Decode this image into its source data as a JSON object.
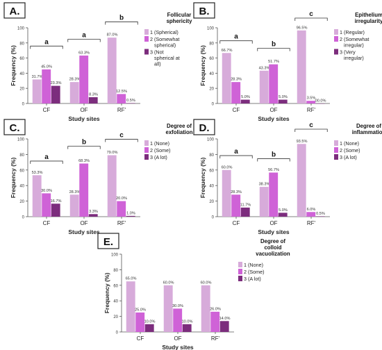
{
  "chart_data": [
    {
      "type": "bar",
      "panel_label": "A.",
      "legend_title": "Follicular sphericity",
      "ylabel": "Frequency (%)",
      "xlabel": "Study sites",
      "ylim": [
        0,
        100
      ],
      "yticks": [
        0,
        20,
        40,
        60,
        80,
        100
      ],
      "categories": [
        "CF",
        "OF",
        "RF'"
      ],
      "series": [
        {
          "name": "1 (Spherical)",
          "values": [
            31.7,
            28.3,
            87.0
          ],
          "labels": [
            "31.7%",
            "28.3%",
            "87.0%"
          ]
        },
        {
          "name": "2 (Somewhat spherical)",
          "values": [
            45.0,
            63.3,
            12.5
          ],
          "labels": [
            "45.0%",
            "63.3%",
            "12.5%"
          ]
        },
        {
          "name": "3 (Not spherical at all)",
          "values": [
            23.3,
            8.3,
            0.5
          ],
          "labels": [
            "23.3%",
            "8.3%",
            "0.5%"
          ]
        }
      ],
      "significance_letters": [
        "a",
        "a",
        "b"
      ]
    },
    {
      "type": "bar",
      "panel_label": "B.",
      "legend_title": "Epithelium irregularity",
      "ylabel": "Frequency (%)",
      "xlabel": "Study sites",
      "ylim": [
        0,
        100
      ],
      "yticks": [
        0,
        20,
        40,
        60,
        80,
        100
      ],
      "categories": [
        "CF",
        "OF",
        "RF'"
      ],
      "series": [
        {
          "name": "1 (Regular)",
          "values": [
            66.7,
            43.3,
            96.5
          ],
          "labels": [
            "66.7%",
            "43.3%",
            "96.5%"
          ]
        },
        {
          "name": "2 (Somewhat irregular)",
          "values": [
            28.3,
            51.7,
            3.5
          ],
          "labels": [
            "28.3%",
            "51.7%",
            "3.5%"
          ]
        },
        {
          "name": "3 (Very irregular)",
          "values": [
            5.0,
            5.0,
            0.0
          ],
          "labels": [
            "5.0%",
            "5.0%",
            "00.0%"
          ]
        }
      ],
      "significance_letters": [
        "a",
        "b",
        "c"
      ]
    },
    {
      "type": "bar",
      "panel_label": "C.",
      "legend_title": "Degree of exfoliation",
      "ylabel": "Frequency (%)",
      "xlabel": "Study sites",
      "ylim": [
        0,
        100
      ],
      "yticks": [
        0,
        20,
        40,
        60,
        80,
        100
      ],
      "categories": [
        "CF",
        "OF",
        "RF'"
      ],
      "series": [
        {
          "name": "1 (None)",
          "values": [
            53.3,
            28.3,
            79.0
          ],
          "labels": [
            "53.3%",
            "28.3%",
            "79.0%"
          ]
        },
        {
          "name": "2 (Some)",
          "values": [
            30.0,
            68.3,
            20.0
          ],
          "labels": [
            "30.0%",
            "68.3%",
            "20.0%"
          ]
        },
        {
          "name": "3 (A lot)",
          "values": [
            16.7,
            3.3,
            1.0
          ],
          "labels": [
            "16.7%",
            "3.3%",
            "1.0%"
          ]
        }
      ],
      "significance_letters": [
        "a",
        "b",
        "c"
      ]
    },
    {
      "type": "bar",
      "panel_label": "D.",
      "legend_title": "Degree of inflammation",
      "ylabel": "Frequency (%)",
      "xlabel": "Study sites",
      "ylim": [
        0,
        100
      ],
      "yticks": [
        0,
        20,
        40,
        60,
        80,
        100
      ],
      "categories": [
        "CF",
        "OF",
        "RF'"
      ],
      "series": [
        {
          "name": "1 (None)",
          "values": [
            60.0,
            38.3,
            93.5
          ],
          "labels": [
            "60.0%",
            "38.3%",
            "93.5%"
          ]
        },
        {
          "name": "2 (Some)",
          "values": [
            28.3,
            56.7,
            6.0
          ],
          "labels": [
            "28.3%",
            "56.7%",
            "6.0%"
          ]
        },
        {
          "name": "3 (A lot)",
          "values": [
            11.7,
            5.0,
            0.5
          ],
          "labels": [
            "11.7%",
            "5.0%",
            "0.5%"
          ]
        }
      ],
      "significance_letters": [
        "a",
        "b",
        "c"
      ]
    },
    {
      "type": "bar",
      "panel_label": "E.",
      "legend_title": "Degree of colloid vacuolization",
      "ylabel": "Frequency (%)",
      "xlabel": "Study sites",
      "ylim": [
        0,
        100
      ],
      "yticks": [
        0,
        20,
        40,
        60,
        80,
        100
      ],
      "categories": [
        "CF",
        "OF",
        "RF'"
      ],
      "series": [
        {
          "name": "1 (None)",
          "values": [
            65.0,
            60.0,
            60.0
          ],
          "labels": [
            "65.0%",
            "60.0%",
            "60.0%"
          ]
        },
        {
          "name": "2 (Some)",
          "values": [
            25.0,
            30.0,
            26.0
          ],
          "labels": [
            "25.0%",
            "30.0%",
            "26.0%"
          ]
        },
        {
          "name": "3 (A lot)",
          "values": [
            10.0,
            10.0,
            14.0
          ],
          "labels": [
            "10.0%",
            "10.0%",
            "14.0%"
          ]
        }
      ],
      "significance_letters": []
    }
  ],
  "colors": {
    "series": [
      "#d7abda",
      "#cf62d7",
      "#7c2d7d"
    ],
    "axis": "#555555",
    "bracket": "#333333"
  }
}
